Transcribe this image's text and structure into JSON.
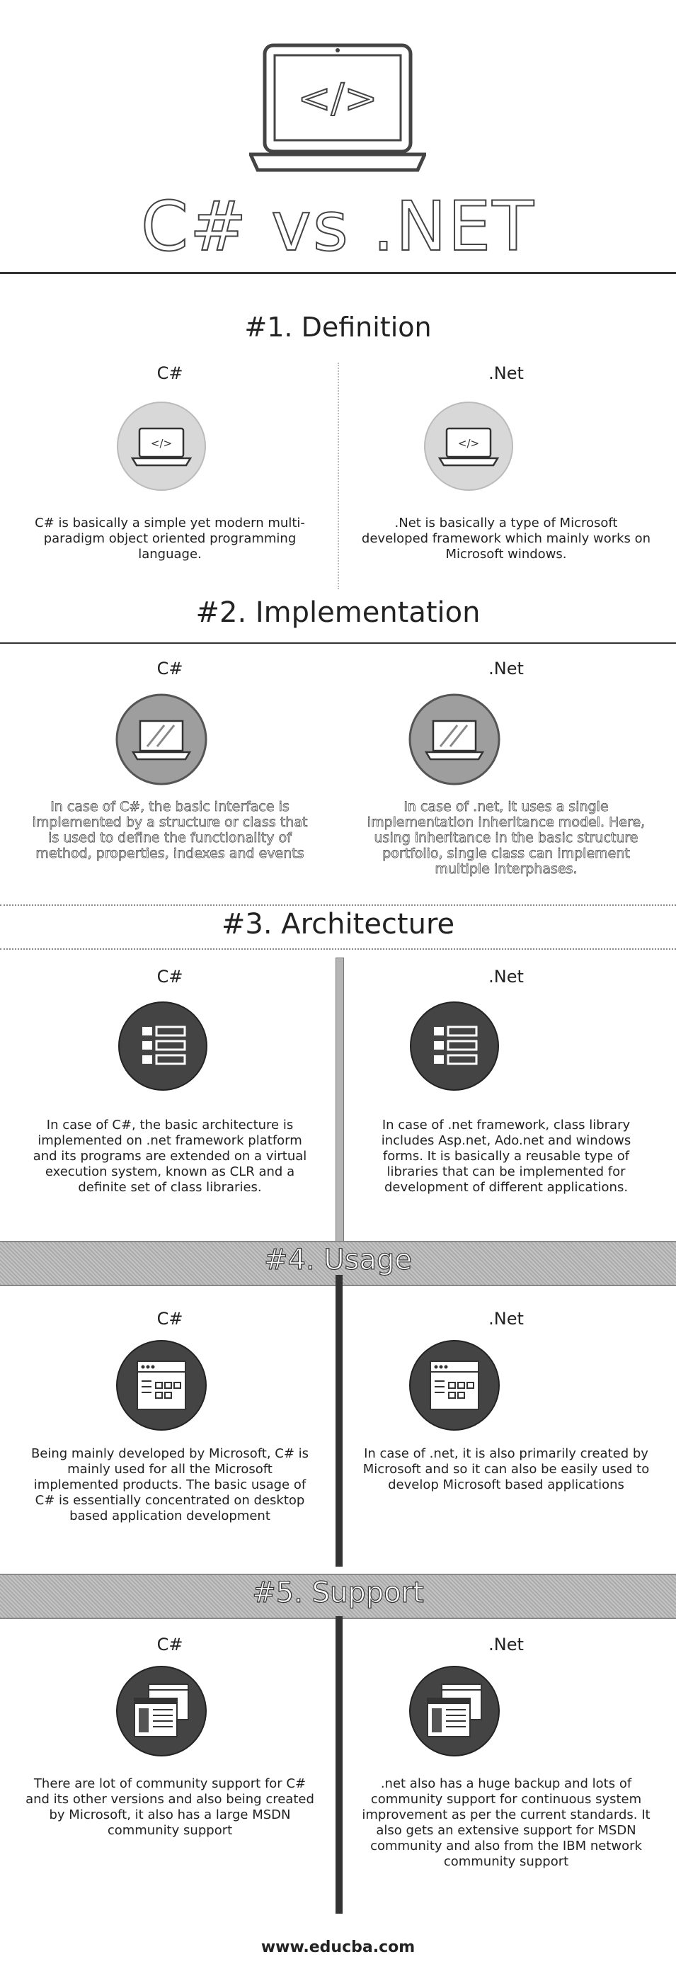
{
  "header": {
    "title": "C# vs .NET"
  },
  "sections": [
    {
      "title": "#1. Definition",
      "left_label": "C#",
      "left_text": "C# is basically a simple yet modern multi-paradigm object oriented programming language.",
      "right_label": ".Net",
      "right_text": ".Net is basically a type of Microsoft developed framework which mainly works on Microsoft windows."
    },
    {
      "title": "#2. Implementation",
      "left_label": "C#",
      "left_text": "In case of C#, the basic interface is implemented by a structure or class that is used to define the functionality of method, properties, indexes and events",
      "right_label": ".Net",
      "right_text": "In case of .net, it uses a single implementation inheritance model. Here, using inheritance in the basic structure portfolio, single class can implement multiple interphases."
    },
    {
      "title": "#3. Architecture",
      "left_label": "C#",
      "left_text": "In case of C#, the basic architecture is implemented on .net framework platform and its programs are extended on a virtual execution system, known as CLR and a definite set of class libraries.",
      "right_label": ".Net",
      "right_text": "In case of .net framework, class library includes Asp.net, Ado.net and windows forms. It is basically a reusable type of libraries that can be implemented for development of different applications."
    },
    {
      "title": "#4. Usage",
      "left_label": "C#",
      "left_text": "Being mainly developed by Microsoft, C# is mainly used for all the Microsoft implemented products. The basic usage of C# is essentially concentrated on desktop based application development",
      "right_label": ".Net",
      "right_text": "In case of .net, it is also primarily created by Microsoft and so it can also be easily used to develop Microsoft based applications"
    },
    {
      "title": "#5. Support",
      "left_label": "C#",
      "left_text": "There are lot of community support for C# and its other versions and also being created by Microsoft, it also has a large MSDN community support",
      "right_label": ".Net",
      "right_text": ".net also has a huge backup and lots of community support for continuous system improvement as per the current standards. It also gets an extensive support for MSDN community and also from the IBM network community support"
    }
  ],
  "footer": {
    "website": "www.educba.com"
  }
}
